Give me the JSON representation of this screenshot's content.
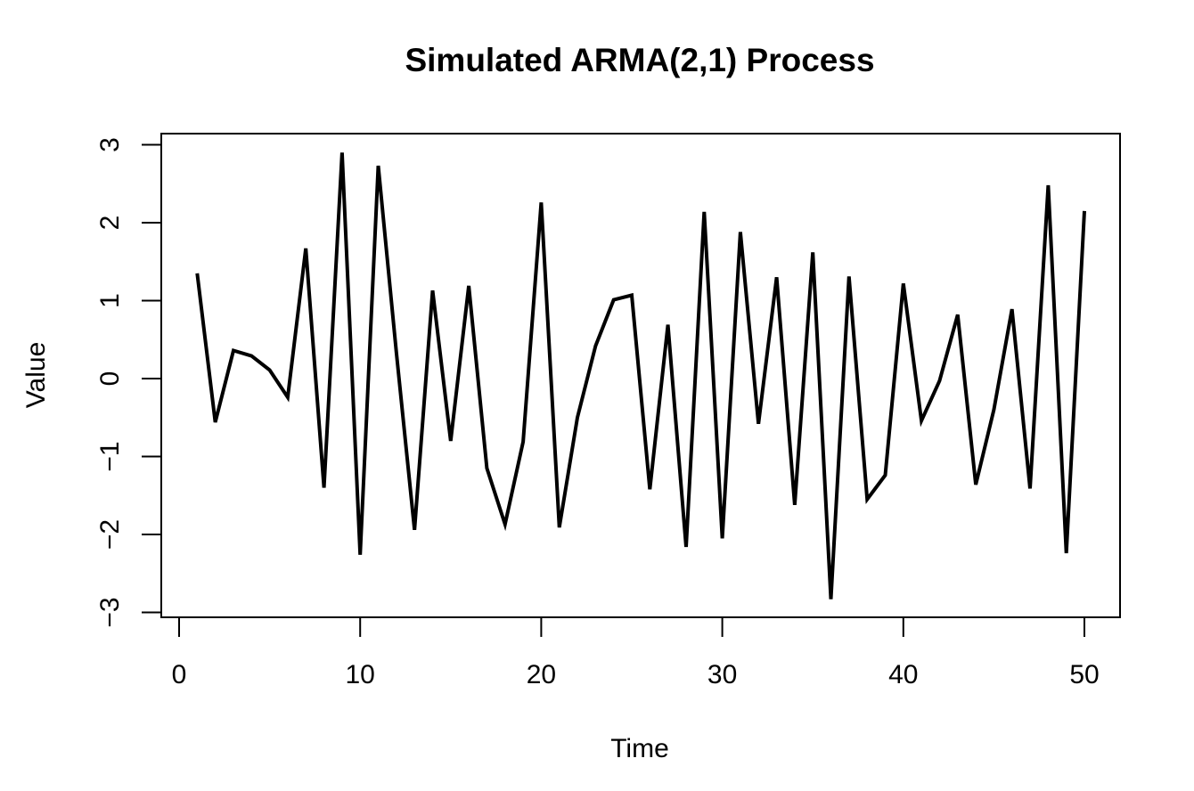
{
  "chart_data": {
    "type": "line",
    "title": "Simulated ARMA(2,1) Process",
    "xlabel": "Time",
    "ylabel": "Value",
    "xlim": [
      0,
      50
    ],
    "ylim": [
      -3,
      3
    ],
    "x_ticks": [
      0,
      10,
      20,
      30,
      40,
      50
    ],
    "y_ticks": [
      -3,
      -2,
      -1,
      0,
      1,
      2,
      3
    ],
    "x_tick_labels": [
      "0",
      "10",
      "20",
      "30",
      "40",
      "50"
    ],
    "y_tick_labels": [
      "−3",
      "−2",
      "−1",
      "0",
      "1",
      "2",
      "3"
    ],
    "grid": false,
    "legend": "none",
    "line_color": "#000000",
    "x": [
      1,
      2,
      3,
      4,
      5,
      6,
      7,
      8,
      9,
      10,
      11,
      12,
      13,
      14,
      15,
      16,
      17,
      18,
      19,
      20,
      21,
      22,
      23,
      24,
      25,
      26,
      27,
      28,
      29,
      30,
      31,
      32,
      33,
      34,
      35,
      36,
      37,
      38,
      39,
      40,
      41,
      42,
      43,
      44,
      45,
      46,
      47,
      48,
      49,
      50
    ],
    "values": [
      1.35,
      -0.56,
      0.36,
      0.29,
      0.11,
      -0.24,
      1.67,
      -1.4,
      2.9,
      -2.26,
      2.73,
      0.34,
      -1.94,
      1.13,
      -0.8,
      1.19,
      -1.15,
      -1.87,
      -0.81,
      2.26,
      -1.91,
      -0.5,
      0.42,
      1.01,
      1.07,
      -1.42,
      0.69,
      -2.16,
      2.14,
      -2.05,
      1.88,
      -0.58,
      1.3,
      -1.62,
      1.62,
      -2.83,
      1.31,
      -1.55,
      -1.24,
      1.22,
      -0.54,
      -0.03,
      0.82,
      -1.36,
      -0.4,
      0.89,
      -1.41,
      2.48,
      -2.24,
      2.15
    ]
  }
}
